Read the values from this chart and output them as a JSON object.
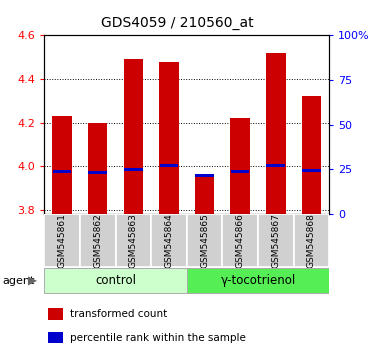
{
  "title": "GDS4059 / 210560_at",
  "samples": [
    "GSM545861",
    "GSM545862",
    "GSM545863",
    "GSM545864",
    "GSM545865",
    "GSM545866",
    "GSM545867",
    "GSM545868"
  ],
  "red_values": [
    4.23,
    4.2,
    4.49,
    4.48,
    3.95,
    4.22,
    4.52,
    4.32
  ],
  "blue_values": [
    3.975,
    3.97,
    3.985,
    4.005,
    3.958,
    3.975,
    4.005,
    3.98
  ],
  "y_min": 3.78,
  "y_max": 4.6,
  "y_ticks_left": [
    3.8,
    4.0,
    4.2,
    4.4,
    4.6
  ],
  "y_ticks_right_vals": [
    3.78,
    3.985,
    4.19,
    4.395,
    4.6
  ],
  "y_right_labels": [
    "0",
    "25",
    "50",
    "75",
    "100%"
  ],
  "groups": [
    {
      "label": "control",
      "start": 0,
      "end": 3,
      "color": "#ccffcc"
    },
    {
      "label": "γ-tocotrienol",
      "start": 4,
      "end": 7,
      "color": "#55ee55"
    }
  ],
  "bar_width": 0.55,
  "red_color": "#cc0000",
  "blue_color": "#0000cc",
  "agent_label": "agent",
  "legend_items": [
    {
      "color": "#cc0000",
      "label": "transformed count"
    },
    {
      "color": "#0000cc",
      "label": "percentile rank within the sample"
    }
  ],
  "plot_bg": "#ffffff",
  "gray_box_color": "#d0d0d0",
  "title_fontsize": 10
}
